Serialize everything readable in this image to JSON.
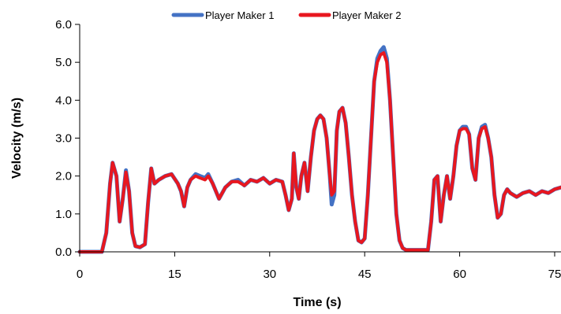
{
  "chart_data": {
    "type": "line",
    "xlabel": "Time (s)",
    "ylabel": "Velocity (m/s)",
    "xlim": [
      0,
      76
    ],
    "ylim": [
      0,
      6
    ],
    "x_ticks": [
      "0",
      "15",
      "30",
      "45",
      "60",
      "75"
    ],
    "x_tick_values": [
      0,
      15,
      30,
      45,
      60,
      75
    ],
    "y_ticks": [
      "0.0",
      "1.0",
      "2.0",
      "3.0",
      "4.0",
      "5.0",
      "6.0"
    ],
    "y_tick_values": [
      0,
      1,
      2,
      3,
      4,
      5,
      6
    ],
    "grid": false,
    "legend_position": "top-center",
    "series": [
      {
        "name": "Player Maker 1",
        "color": "#4472C4",
        "x": [
          0,
          3.5,
          4.2,
          4.8,
          5.2,
          5.8,
          6.3,
          6.8,
          7.3,
          7.8,
          8.3,
          8.8,
          9.5,
          10.3,
          10.8,
          11.3,
          11.8,
          12.5,
          13.5,
          14.5,
          15.5,
          16,
          16.5,
          17,
          17.5,
          18.3,
          19,
          19.8,
          20.3,
          21,
          22,
          23,
          24,
          25,
          26,
          27,
          28,
          29,
          30,
          31,
          32,
          32.5,
          33,
          33.5,
          33.8,
          34.2,
          34.6,
          35,
          35.5,
          36,
          36.5,
          37,
          37.5,
          38,
          38.5,
          39,
          39.5,
          39.8,
          40.2,
          40.6,
          41,
          41.5,
          42,
          42.5,
          43,
          43.5,
          44,
          44.5,
          45,
          45.5,
          46,
          46.5,
          47,
          47.5,
          48,
          48.5,
          49,
          49.5,
          50,
          50.5,
          51,
          51.5,
          52,
          53,
          54,
          55,
          55.5,
          56,
          56.5,
          57,
          57.5,
          58,
          58.5,
          59,
          59.5,
          60,
          60.5,
          61,
          61.5,
          62,
          62.5,
          63,
          63.5,
          64,
          64.5,
          65,
          65.5,
          66,
          66.5,
          67,
          67.5,
          68,
          68.5,
          69,
          70,
          71,
          72,
          73,
          74,
          75,
          76
        ],
        "y": [
          0,
          0,
          0.5,
          1.8,
          2.35,
          2.0,
          0.8,
          1.4,
          2.15,
          1.6,
          0.5,
          0.15,
          0.12,
          0.2,
          1.3,
          2.2,
          1.8,
          1.9,
          2.0,
          2.05,
          1.8,
          1.6,
          1.2,
          1.7,
          1.9,
          2.05,
          2.0,
          1.95,
          2.05,
          1.8,
          1.4,
          1.7,
          1.85,
          1.9,
          1.75,
          1.9,
          1.85,
          1.95,
          1.8,
          1.9,
          1.85,
          1.5,
          1.1,
          1.4,
          2.6,
          1.7,
          1.4,
          2.0,
          2.35,
          1.6,
          2.5,
          3.2,
          3.5,
          3.6,
          3.5,
          3.0,
          2.0,
          1.25,
          1.5,
          3.2,
          3.7,
          3.8,
          3.4,
          2.5,
          1.5,
          0.8,
          0.3,
          0.25,
          0.35,
          1.5,
          3.0,
          4.5,
          5.1,
          5.3,
          5.4,
          5.1,
          4.0,
          2.5,
          1.0,
          0.3,
          0.1,
          0.05,
          0.05,
          0.05,
          0.05,
          0.05,
          0.8,
          1.9,
          2.0,
          0.8,
          1.5,
          2.0,
          1.4,
          2.0,
          2.8,
          3.2,
          3.3,
          3.3,
          3.1,
          2.2,
          1.9,
          3.0,
          3.3,
          3.35,
          3.0,
          2.5,
          1.5,
          0.9,
          1.0,
          1.5,
          1.65,
          1.55,
          1.5,
          1.45,
          1.55,
          1.6,
          1.5,
          1.6,
          1.55,
          1.65,
          1.7
        ]
      },
      {
        "name": "Player Maker 2",
        "color": "#E8171F",
        "x": [
          0,
          3.5,
          4.2,
          4.8,
          5.2,
          5.8,
          6.3,
          6.8,
          7.3,
          7.8,
          8.3,
          8.8,
          9.5,
          10.3,
          10.8,
          11.3,
          11.8,
          12.5,
          13.5,
          14.5,
          15.5,
          16,
          16.5,
          17,
          17.5,
          18.3,
          19,
          19.8,
          20.3,
          21,
          22,
          23,
          24,
          25,
          26,
          27,
          28,
          29,
          30,
          31,
          32,
          32.5,
          33,
          33.5,
          33.8,
          34.2,
          34.6,
          35,
          35.5,
          36,
          36.5,
          37,
          37.5,
          38,
          38.5,
          39,
          39.5,
          39.8,
          40.2,
          40.6,
          41,
          41.5,
          42,
          42.5,
          43,
          43.5,
          44,
          44.5,
          45,
          45.5,
          46,
          46.5,
          47,
          47.5,
          48,
          48.5,
          49,
          49.5,
          50,
          50.5,
          51,
          51.5,
          52,
          53,
          54,
          55,
          55.5,
          56,
          56.5,
          57,
          57.5,
          58,
          58.5,
          59,
          59.5,
          60,
          60.5,
          61,
          61.5,
          62,
          62.5,
          63,
          63.5,
          64,
          64.5,
          65,
          65.5,
          66,
          66.5,
          67,
          67.5,
          68,
          68.5,
          69,
          70,
          71,
          72,
          73,
          74,
          75,
          76
        ],
        "y": [
          0,
          0,
          0.5,
          1.8,
          2.35,
          2.0,
          0.8,
          1.4,
          2.1,
          1.6,
          0.5,
          0.15,
          0.12,
          0.2,
          1.3,
          2.2,
          1.8,
          1.9,
          2.0,
          2.05,
          1.8,
          1.6,
          1.2,
          1.7,
          1.9,
          2.0,
          1.95,
          1.9,
          2.0,
          1.8,
          1.4,
          1.7,
          1.85,
          1.85,
          1.75,
          1.9,
          1.85,
          1.95,
          1.8,
          1.9,
          1.85,
          1.5,
          1.1,
          1.4,
          2.6,
          1.7,
          1.4,
          2.0,
          2.35,
          1.6,
          2.5,
          3.2,
          3.5,
          3.6,
          3.5,
          3.0,
          2.0,
          1.5,
          1.6,
          3.2,
          3.7,
          3.8,
          3.4,
          2.5,
          1.5,
          0.8,
          0.3,
          0.25,
          0.35,
          1.5,
          3.0,
          4.5,
          5.0,
          5.2,
          5.25,
          5.0,
          4.0,
          2.5,
          1.0,
          0.3,
          0.1,
          0.05,
          0.05,
          0.05,
          0.05,
          0.05,
          0.8,
          1.9,
          2.0,
          0.8,
          1.5,
          2.0,
          1.4,
          2.0,
          2.8,
          3.2,
          3.25,
          3.25,
          3.1,
          2.2,
          1.9,
          3.0,
          3.25,
          3.3,
          3.0,
          2.5,
          1.5,
          0.9,
          1.0,
          1.5,
          1.65,
          1.55,
          1.5,
          1.45,
          1.55,
          1.6,
          1.5,
          1.6,
          1.55,
          1.65,
          1.7
        ]
      }
    ]
  }
}
